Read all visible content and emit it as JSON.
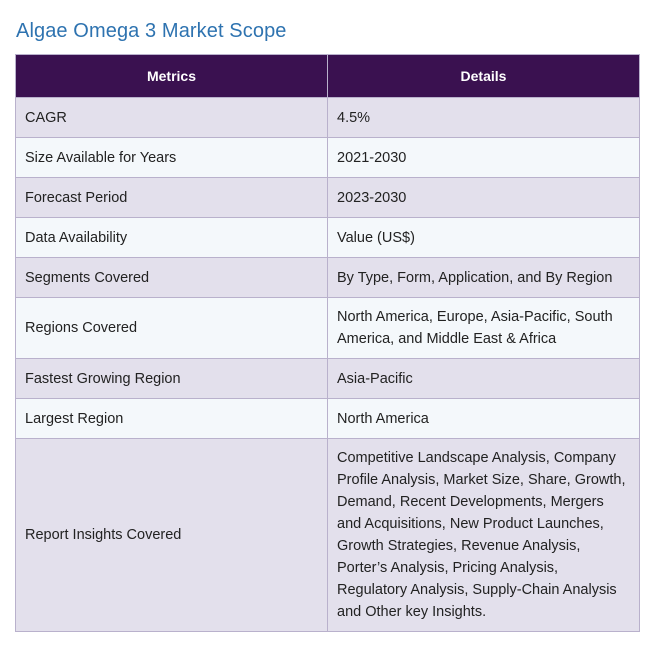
{
  "title": "Algae Omega 3 Market Scope",
  "table": {
    "headers": [
      "Metrics",
      "Details"
    ],
    "rows": [
      [
        "CAGR",
        "4.5%"
      ],
      [
        "Size Available for Years",
        "2021-2030"
      ],
      [
        "Forecast Period",
        "2023-2030"
      ],
      [
        "Data Availability",
        "Value (US$)"
      ],
      [
        "Segments Covered",
        "By Type, Form, Application, and By Region"
      ],
      [
        "Regions Covered",
        "North America, Europe, Asia-Pacific, South America, and Middle East & Africa"
      ],
      [
        "Fastest Growing Region",
        "Asia-Pacific"
      ],
      [
        "Largest Region",
        "North America"
      ],
      [
        "Report Insights Covered",
        "Competitive Landscape Analysis, Company Profile Analysis, Market Size, Share, Growth, Demand, Recent Developments, Mergers and Acquisitions, New Product Launches, Growth Strategies, Revenue Analysis, Porter’s Analysis, Pricing Analysis, Regulatory Analysis, Supply-Chain Analysis and Other key Insights."
      ]
    ]
  },
  "colors": {
    "title": "#2e73b0",
    "header_bg": "#3a1150",
    "row_odd": "#e3e0ec",
    "row_even": "#f4f8fb",
    "border": "#b9b1cc"
  }
}
